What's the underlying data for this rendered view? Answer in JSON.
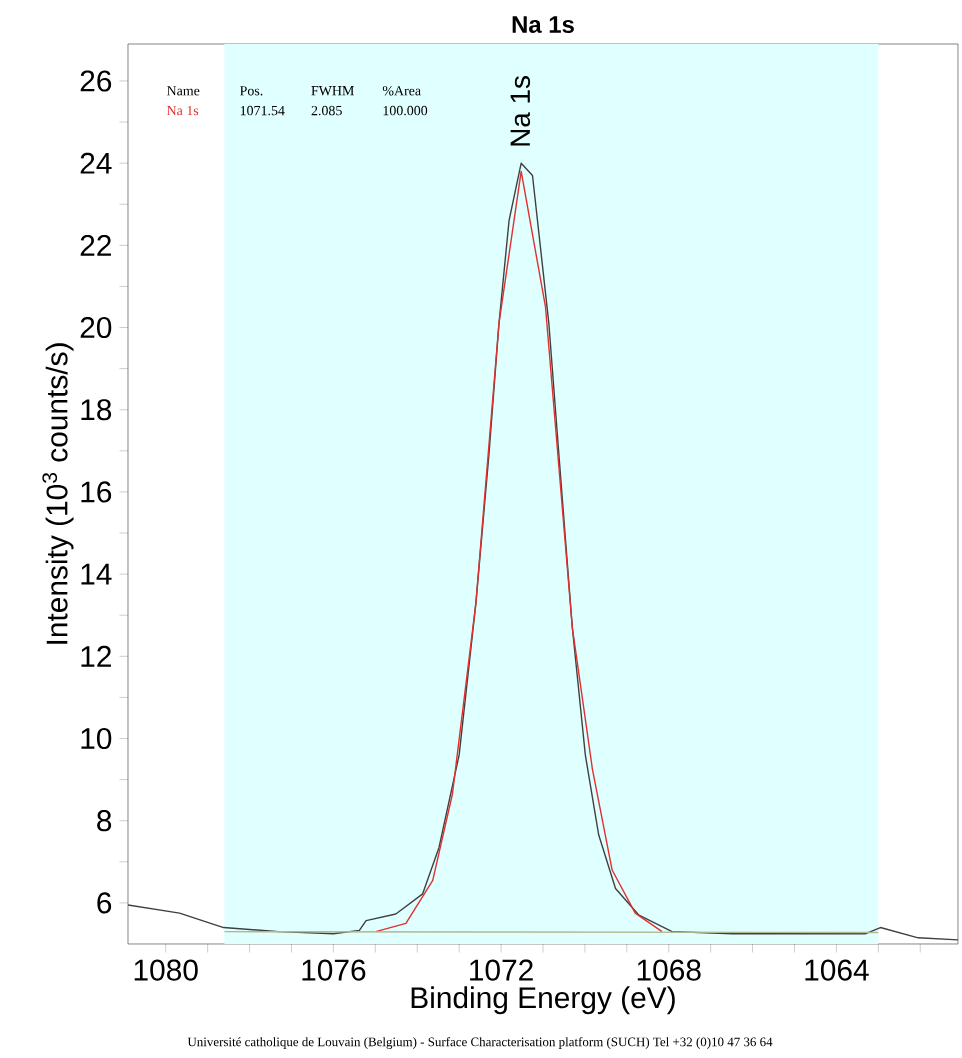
{
  "chart_data": {
    "type": "line",
    "title": "Na 1s",
    "xlabel": "Binding Energy (eV)",
    "ylabel": "Intensity (10$^{3}$ counts/s)",
    "xlim": [
      1080.9,
      1061.1
    ],
    "xticks": [
      1080,
      {
        "value": 1079,
        "label": null
      },
      {
        "value": 1078,
        "label": null
      },
      {
        "value": 1077,
        "label": null
      },
      1076,
      {
        "value": 1075,
        "label": null
      },
      {
        "value": 1074,
        "label": null
      },
      {
        "value": 1073,
        "label": null
      },
      1072,
      {
        "value": 1071,
        "label": null
      },
      {
        "value": 1070,
        "label": null
      },
      {
        "value": 1069,
        "label": null
      },
      1068,
      {
        "value": 1067,
        "label": null
      },
      {
        "value": 1066,
        "label": null
      },
      {
        "value": 1065,
        "label": null
      },
      1064,
      {
        "value": 1063,
        "label": null
      },
      {
        "value": 1062,
        "label": null
      }
    ],
    "ylim": [
      5.0,
      26.9
    ],
    "yticks": [
      6,
      {
        "value": 7,
        "label": null
      },
      8,
      {
        "value": 9,
        "label": null
      },
      10,
      {
        "value": 11,
        "label": null
      },
      12,
      {
        "value": 13,
        "label": null
      },
      14,
      {
        "value": 15,
        "label": null
      },
      16,
      {
        "value": 17,
        "label": null
      },
      18,
      {
        "value": 19,
        "label": null
      },
      20,
      {
        "value": 21,
        "label": null
      },
      22,
      {
        "value": 23,
        "label": null
      },
      24,
      {
        "value": 25,
        "label": null
      },
      26
    ],
    "bands": [
      {
        "axis": "x",
        "from": 1078.6,
        "to": 1063.0,
        "color": "#e0ffff"
      }
    ],
    "series": [
      {
        "color": "#404040",
        "x": [
          1080.9,
          1079.67,
          1078.62,
          1077.3,
          1076.0,
          1075.38,
          1075.22,
          1074.51,
          1073.87,
          1073.48,
          1073.0,
          1072.6,
          1072.29,
          1072.05,
          1071.81,
          1071.52,
          1071.25,
          1070.86,
          1070.62,
          1070.3,
          1069.99,
          1069.67,
          1069.27,
          1068.71,
          1067.92,
          1066.48,
          1063.3,
          1062.95,
          1062.05,
          1061.1
        ],
        "values": [
          5.95,
          5.75,
          5.4,
          5.3,
          5.25,
          5.33,
          5.57,
          5.73,
          6.22,
          7.35,
          9.6,
          13.3,
          16.9,
          20.1,
          22.6,
          24.0,
          23.7,
          20.1,
          16.9,
          12.7,
          9.6,
          7.65,
          6.35,
          5.7,
          5.3,
          5.25,
          5.25,
          5.4,
          5.15,
          5.1
        ]
      },
      {
        "color": "#e03030",
        "x": [
          1074.99,
          1074.27,
          1073.63,
          1073.16,
          1072.6,
          1072.05,
          1071.52,
          1070.94,
          1070.3,
          1069.82,
          1069.35,
          1068.8,
          1068.16
        ],
        "values": [
          5.3,
          5.5,
          6.55,
          8.65,
          13.3,
          20.1,
          23.8,
          20.5,
          12.7,
          9.25,
          6.8,
          5.75,
          5.3
        ]
      },
      {
        "color": "#b0b890",
        "x": [
          1078.6,
          1063.0
        ],
        "values": [
          5.3,
          5.28
        ]
      }
    ],
    "annotations": [
      {
        "text": "Na 1s",
        "x": 1071.54,
        "y": 24.2
      },
      "Name",
      "Pos.",
      "FWHM",
      "%Area",
      "Na 1s",
      "1071.54",
      "2.085",
      "100.000",
      "Université catholique de Louvain (Belgium) - Surface Characterisation platform (SUCH) Tel +32 (0)10 47 36 64"
    ]
  }
}
